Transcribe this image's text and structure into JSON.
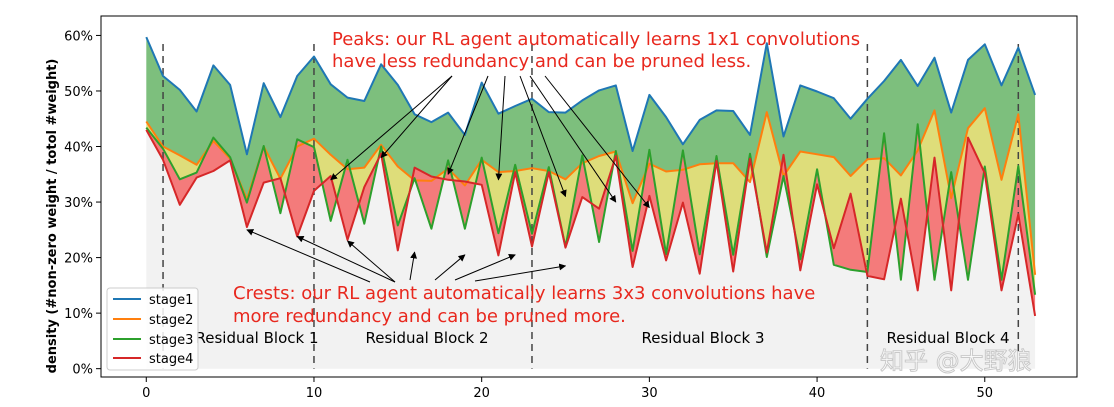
{
  "chart_data": {
    "type": "area",
    "title": "",
    "xlabel": "",
    "ylabel": "density (#non-zero weight / totol #weight)",
    "xlim": [
      -2.7,
      55.5
    ],
    "ylim": [
      -1.5,
      63.5
    ],
    "xticks": [
      0,
      10,
      20,
      30,
      40,
      50
    ],
    "xtick_labels": [
      "0",
      "10",
      "20",
      "30",
      "40",
      "50"
    ],
    "yticks": [
      0,
      10,
      20,
      30,
      40,
      50,
      60
    ],
    "ytick_labels": [
      "0%",
      "10%",
      "20%",
      "30%",
      "40%",
      "50%",
      "60%"
    ],
    "grid": false,
    "legend_position": "lower-left",
    "x": [
      0,
      1,
      2,
      3,
      4,
      5,
      6,
      7,
      8,
      9,
      10,
      11,
      12,
      13,
      14,
      15,
      16,
      17,
      18,
      19,
      20,
      21,
      22,
      23,
      24,
      25,
      26,
      27,
      28,
      29,
      30,
      31,
      32,
      33,
      34,
      35,
      36,
      37,
      38,
      39,
      40,
      41,
      42,
      43,
      44,
      45,
      46,
      47,
      48,
      49,
      50,
      51,
      52,
      53
    ],
    "series": [
      {
        "name": "stage1",
        "color": "#1f77b4",
        "values": [
          59.7,
          52.7,
          50.2,
          46.3,
          54.6,
          51.1,
          38.6,
          51.4,
          45.3,
          52.7,
          56.2,
          51.2,
          48.8,
          48.2,
          54.8,
          51.1,
          45.8,
          44.4,
          46.1,
          42.1,
          51.5,
          45.9,
          47.3,
          48.6,
          46.2,
          46.1,
          48.3,
          50.1,
          51.0,
          39.2,
          49.3,
          45.3,
          40.4,
          44.8,
          46.5,
          46.4,
          42.1,
          58.6,
          41.8,
          51.0,
          49.9,
          48.7,
          45.0,
          48.6,
          51.8,
          55.6,
          50.9,
          56.0,
          46.1,
          55.6,
          58.4,
          51.0,
          57.8,
          49.3
        ]
      },
      {
        "name": "stage2",
        "color": "#ff7f0e",
        "values": [
          44.5,
          40.0,
          38.4,
          36.7,
          41.0,
          37.8,
          30.5,
          40.0,
          34.2,
          40.0,
          41.4,
          38.5,
          35.9,
          36.2,
          40.3,
          36.4,
          33.9,
          33.8,
          36.0,
          33.0,
          37.6,
          35.4,
          35.6,
          36.1,
          35.6,
          34.1,
          37.0,
          38.3,
          39.1,
          29.8,
          36.9,
          35.5,
          35.8,
          36.8,
          37.0,
          37.0,
          33.6,
          46.2,
          34.7,
          39.1,
          38.6,
          38.1,
          34.7,
          37.7,
          37.9,
          34.8,
          39.3,
          46.5,
          30.7,
          43.3,
          46.9,
          34.0,
          45.8,
          16.9
        ]
      },
      {
        "name": "stage3",
        "color": "#2ca02c",
        "values": [
          43.4,
          39.6,
          34.1,
          35.3,
          41.6,
          38.1,
          29.9,
          40.1,
          28.0,
          41.3,
          39.9,
          26.6,
          37.6,
          26.1,
          40.0,
          25.8,
          34.3,
          25.2,
          37.5,
          25.2,
          38.0,
          24.4,
          36.7,
          24.3,
          36.3,
          21.9,
          38.4,
          22.8,
          39.2,
          21.2,
          39.4,
          20.6,
          39.3,
          20.6,
          38.3,
          20.5,
          38.7,
          20.1,
          34.7,
          19.7,
          35.9,
          18.7,
          17.8,
          17.4,
          42.4,
          16.0,
          44.0,
          16.0,
          35.4,
          16.0,
          36.4,
          16.0,
          36.5,
          13.3
        ]
      },
      {
        "name": "stage4",
        "color": "#d62728",
        "values": [
          43.0,
          37.6,
          29.5,
          34.4,
          35.6,
          37.5,
          25.5,
          33.5,
          34.3,
          23.8,
          32.0,
          34.7,
          23.2,
          32.7,
          38.7,
          21.3,
          36.2,
          34.6,
          34.0,
          33.7,
          33.1,
          20.4,
          35.4,
          22.0,
          35.4,
          21.8,
          30.9,
          28.8,
          38.3,
          18.3,
          31.1,
          19.5,
          29.9,
          17.1,
          37.4,
          17.5,
          37.8,
          20.9,
          38.5,
          17.7,
          33.2,
          21.7,
          31.5,
          16.7,
          16.1,
          30.6,
          14.1,
          38.0,
          14.1,
          41.6,
          35.2,
          14.1,
          27.8,
          9.5
        ]
      }
    ],
    "block_boundaries": [
      1,
      10,
      23,
      43,
      52
    ],
    "block_labels": [
      "Residual Block 1",
      "Residual Block 2",
      "Residual Block 3",
      "Residual Block 4"
    ],
    "fills": {
      "stage1_to_stage2": "#7dbf7d",
      "stage2_to_stage3": "#dedd7a",
      "stage3_to_stage4": "#f47b7b",
      "below": "#f2f2f2"
    },
    "annotations": {
      "peaks": [
        "Peaks: our RL agent automatically learns 1x1 convolutions",
        "have less redundancy and can be pruned less."
      ],
      "crests": [
        "Crests: our RL agent automatically learns 3x3 convolutions have",
        "more redundancy and can be pruned more."
      ]
    },
    "watermark": "知乎 @大野狼"
  }
}
